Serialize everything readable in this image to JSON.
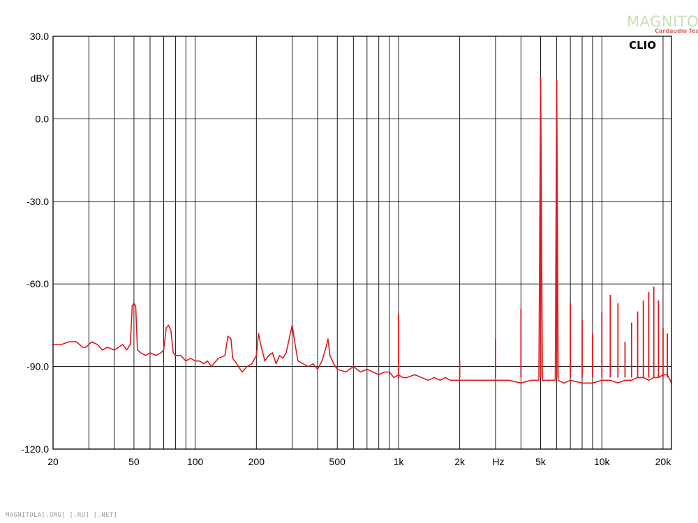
{
  "chart_data": {
    "type": "line",
    "brand_label": "CLIO",
    "y_unit_label": "dBV",
    "x_unit_label": "Hz",
    "ylim": [
      -120,
      30
    ],
    "xlim": [
      20,
      22000
    ],
    "x_scale": "log",
    "grid": true,
    "y_ticks": [
      {
        "value": 30,
        "label": "30.0"
      },
      {
        "value": 0,
        "label": "0.0"
      },
      {
        "value": -30,
        "label": "-30.0"
      },
      {
        "value": -60,
        "label": "-60.0"
      },
      {
        "value": -90,
        "label": "-90.0"
      },
      {
        "value": -120,
        "label": "-120.0"
      }
    ],
    "x_ticks": [
      {
        "value": 20,
        "label": "20"
      },
      {
        "value": 50,
        "label": "50"
      },
      {
        "value": 100,
        "label": "100"
      },
      {
        "value": 200,
        "label": "200"
      },
      {
        "value": 500,
        "label": "500"
      },
      {
        "value": 1000,
        "label": "1k"
      },
      {
        "value": 2000,
        "label": "2k"
      },
      {
        "value": 5000,
        "label": "5k"
      },
      {
        "value": 10000,
        "label": "10k"
      },
      {
        "value": 20000,
        "label": "20k"
      }
    ],
    "series": [
      {
        "color": "#e0191b",
        "x": [
          20,
          22,
          24,
          26,
          28,
          29,
          31,
          33,
          35,
          37,
          40,
          42,
          44,
          46,
          48,
          49,
          50,
          51,
          52,
          54,
          57,
          60,
          64,
          68,
          70,
          72,
          74,
          76,
          78,
          80,
          85,
          90,
          95,
          100,
          105,
          110,
          115,
          120,
          130,
          140,
          145,
          150,
          153,
          160,
          170,
          180,
          190,
          200,
          205,
          210,
          215,
          220,
          230,
          240,
          250,
          260,
          270,
          280,
          290,
          300,
          310,
          320,
          340,
          360,
          380,
          400,
          420,
          440,
          450,
          460,
          480,
          500,
          550,
          600,
          650,
          700,
          750,
          800,
          850,
          900,
          950,
          1000,
          1050,
          1100,
          1200,
          1300,
          1400,
          1500,
          1600,
          1700,
          1800,
          2000,
          2200,
          2500,
          3000,
          3500,
          4000,
          4500,
          4900,
          5000,
          5100,
          5500,
          5900,
          6000,
          6100,
          6500,
          7000,
          8000,
          9000,
          10000,
          11000,
          12000,
          13000,
          14000,
          15000,
          16000,
          17000,
          18000,
          19000,
          20000,
          21000,
          22000
        ],
        "y": [
          -82,
          -82,
          -81,
          -81,
          -83,
          -83,
          -81,
          -82,
          -84,
          -83,
          -84,
          -83,
          -82,
          -84,
          -82,
          -68,
          -67,
          -68,
          -84,
          -85,
          -86,
          -85,
          -86,
          -85,
          -84,
          -76,
          -75,
          -77,
          -85,
          -86,
          -86,
          -88,
          -87,
          -88,
          -88,
          -89,
          -88,
          -90,
          -87,
          -86,
          -79,
          -80,
          -87,
          -89,
          -92,
          -90,
          -89,
          -86,
          -78,
          -82,
          -85,
          -88,
          -86,
          -85,
          -89,
          -86,
          -87,
          -85,
          -80,
          -75,
          -82,
          -88,
          -89,
          -90,
          -89,
          -91,
          -88,
          -83,
          -80,
          -86,
          -89,
          -91,
          -92,
          -90,
          -92,
          -91,
          -92,
          -93,
          -92,
          -92,
          -94,
          -93,
          -94,
          -94,
          -93,
          -94,
          -95,
          -94,
          -95,
          -94,
          -95,
          -95,
          -95,
          -95,
          -95,
          -95,
          -96,
          -95,
          -95,
          15,
          -95,
          -95,
          -95,
          14,
          -95,
          -96,
          -95,
          -96,
          -96,
          -95,
          -95,
          -96,
          -95,
          -95,
          -94,
          -94,
          -95,
          -94,
          -94,
          -93,
          -93,
          -96
        ]
      }
    ],
    "harmonic_spikes": [
      {
        "x": 1000,
        "y": -71
      },
      {
        "x": 2000,
        "y": -88
      },
      {
        "x": 3000,
        "y": -80
      },
      {
        "x": 4000,
        "y": -69
      },
      {
        "x": 5000,
        "y": 15
      },
      {
        "x": 6000,
        "y": 14
      },
      {
        "x": 7000,
        "y": -67
      },
      {
        "x": 8000,
        "y": -73
      },
      {
        "x": 9000,
        "y": -78
      },
      {
        "x": 10000,
        "y": -70
      },
      {
        "x": 11000,
        "y": -64
      },
      {
        "x": 12000,
        "y": -67
      },
      {
        "x": 13000,
        "y": -81
      },
      {
        "x": 14000,
        "y": -74
      },
      {
        "x": 15000,
        "y": -70
      },
      {
        "x": 16000,
        "y": -66
      },
      {
        "x": 17000,
        "y": -63
      },
      {
        "x": 18000,
        "y": -61
      },
      {
        "x": 19000,
        "y": -66
      },
      {
        "x": 20000,
        "y": -76
      },
      {
        "x": 21000,
        "y": -78
      }
    ]
  },
  "watermark": {
    "main": "MAGNITOLA",
    "sub": "Cardaudio Team"
  },
  "footer_text": "MAGNITOLA[.ORG] [.RU] [.NET]"
}
